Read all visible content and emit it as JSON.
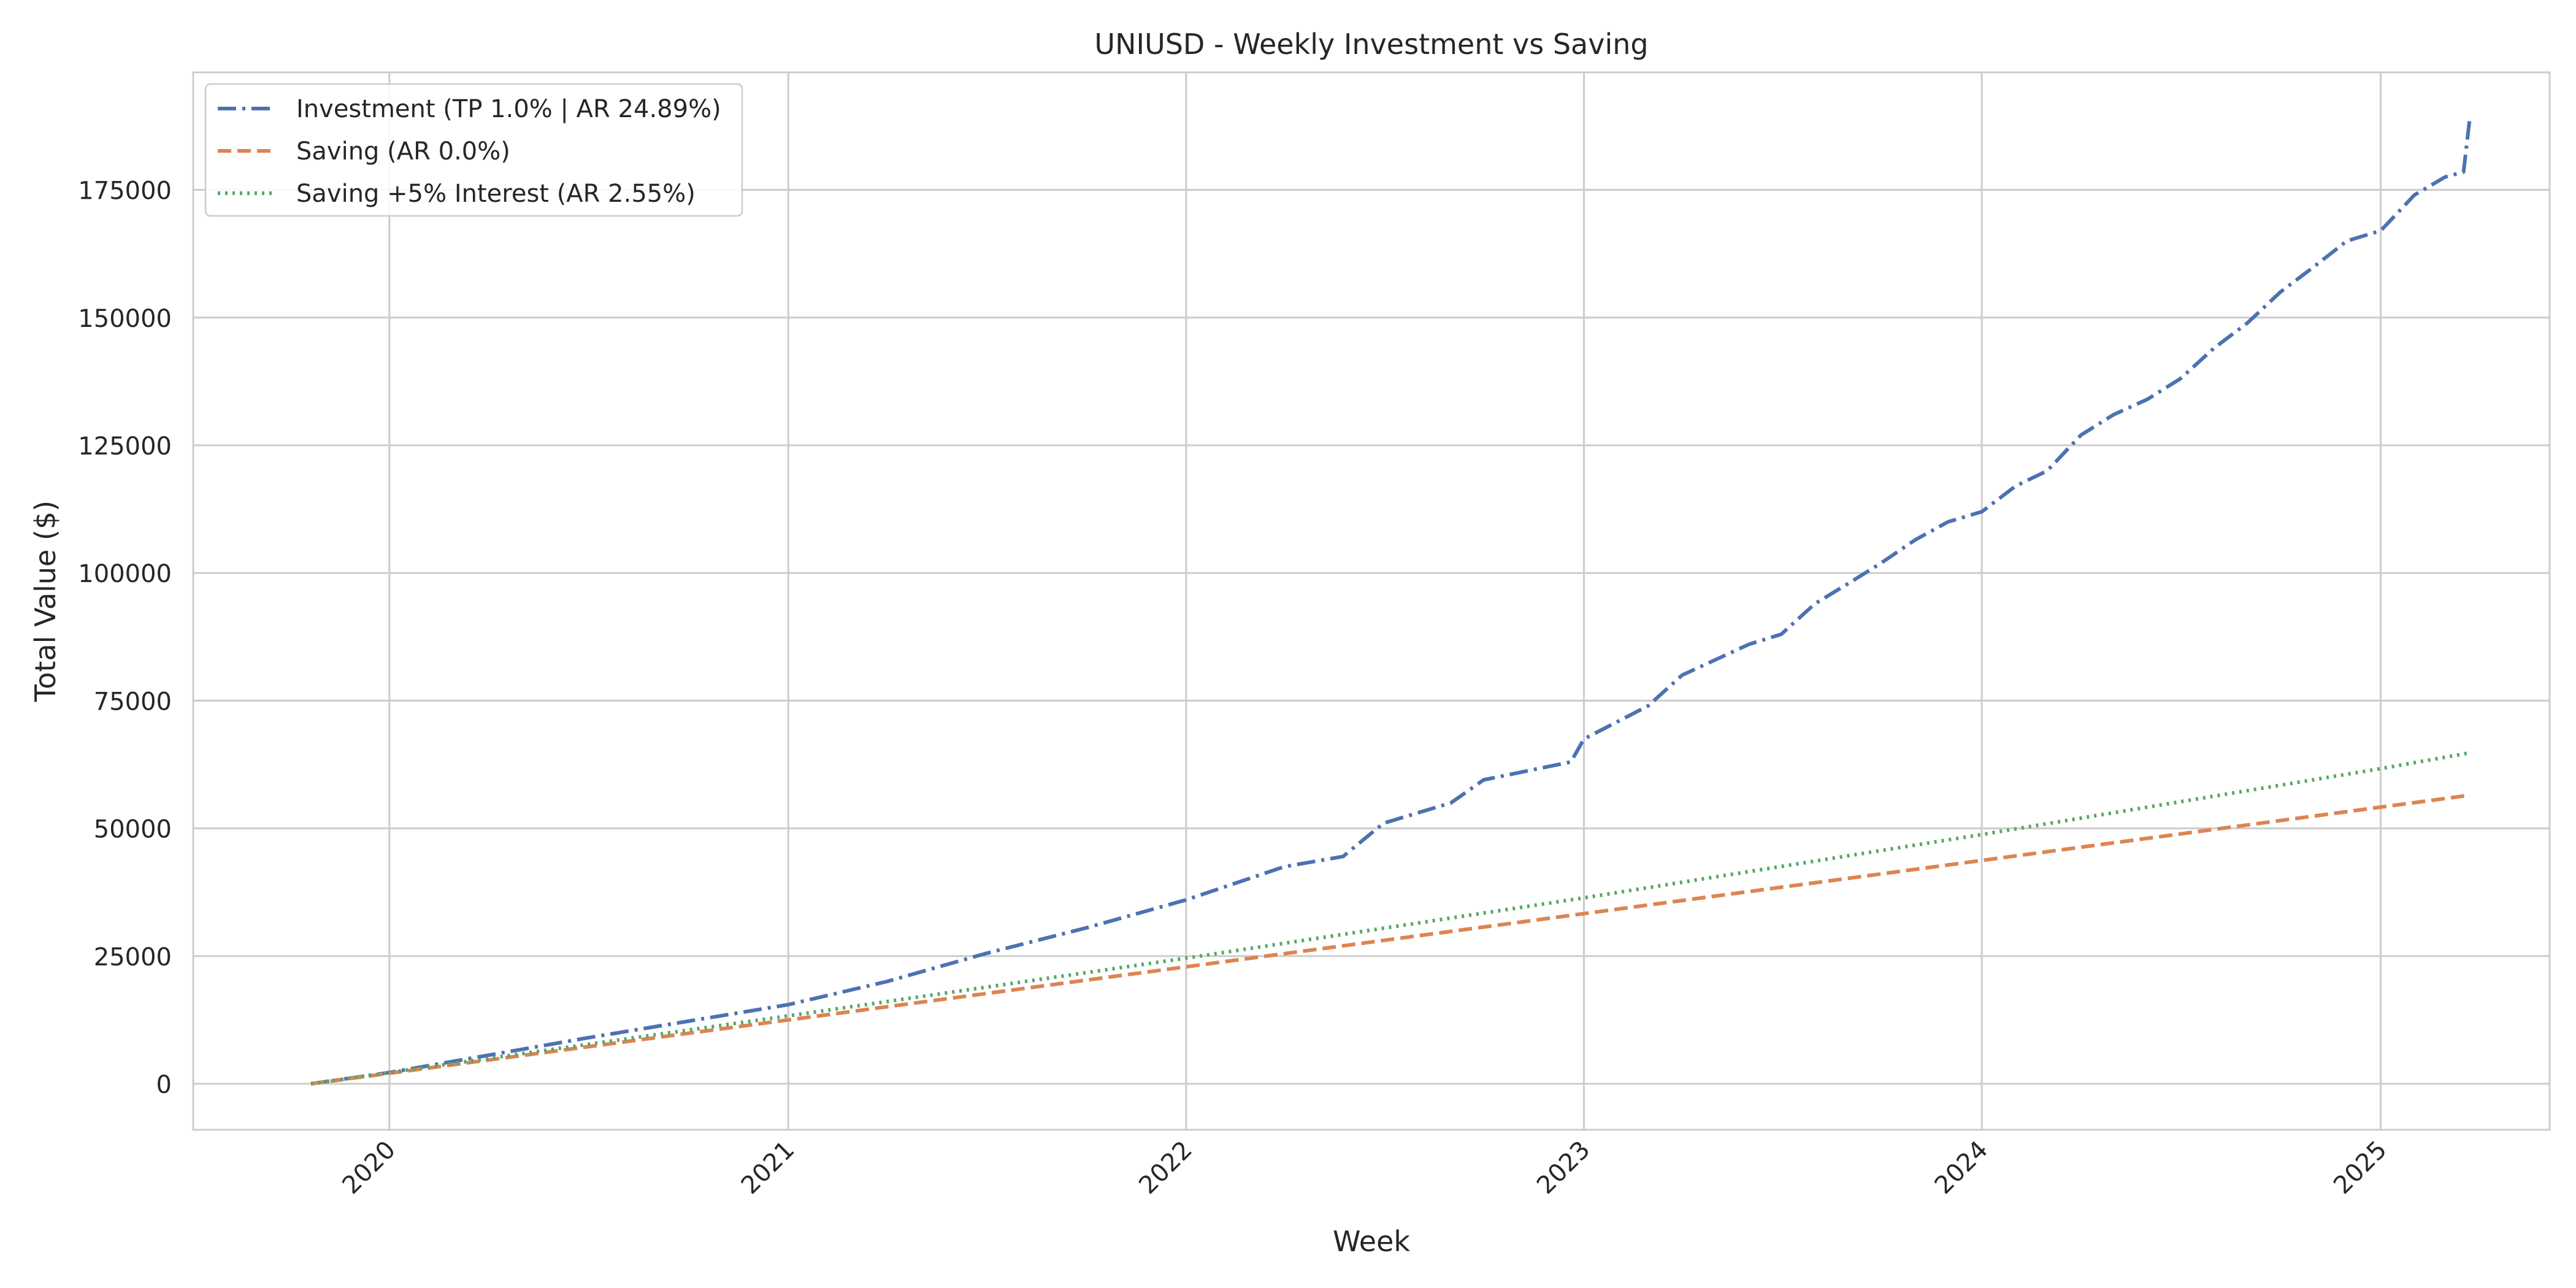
{
  "chart_data": {
    "type": "line",
    "title": "UNIUSD - Weekly Investment vs Saving",
    "xlabel": "Week",
    "ylabel": "Total Value ($)",
    "x_ticks": [
      "2020",
      "2021",
      "2022",
      "2023",
      "2024",
      "2025"
    ],
    "y_ticks": [
      0,
      25000,
      50000,
      75000,
      100000,
      125000,
      150000,
      175000
    ],
    "xlim": [
      "2019-07-05",
      "2025-06-05"
    ],
    "ylim": [
      -9000,
      198000
    ],
    "grid": true,
    "legend_position": "top-left",
    "series": [
      {
        "name": "Investment (TP 1.0% | AR 24.89%)",
        "color": "#4c72b0",
        "style": "dashdot",
        "x": [
          "2019-10-21",
          "2020-01-01",
          "2020-07-01",
          "2021-01-01",
          "2021-04-01",
          "2021-07-01",
          "2021-10-01",
          "2022-01-01",
          "2022-04-01",
          "2022-05-25",
          "2022-07-01",
          "2022-09-01",
          "2022-10-01",
          "2022-12-20",
          "2023-01-01",
          "2023-03-01",
          "2023-04-01",
          "2023-06-01",
          "2023-07-01",
          "2023-08-01",
          "2023-09-01",
          "2023-10-01",
          "2023-11-01",
          "2023-12-01",
          "2024-01-01",
          "2024-02-01",
          "2024-03-01",
          "2024-04-01",
          "2024-05-01",
          "2024-06-01",
          "2024-07-01",
          "2024-08-01",
          "2024-09-01",
          "2024-10-01",
          "2024-11-01",
          "2024-12-01",
          "2025-01-01",
          "2025-02-01",
          "2025-03-01",
          "2025-03-18",
          "2025-03-24"
        ],
        "y": [
          0,
          2200,
          9000,
          15500,
          20000,
          25500,
          30500,
          36000,
          42500,
          44500,
          51000,
          55000,
          59500,
          63000,
          67500,
          74000,
          80000,
          86000,
          88000,
          94000,
          98000,
          102000,
          106500,
          110000,
          112000,
          117000,
          120000,
          127000,
          131000,
          134000,
          138000,
          144000,
          149000,
          155000,
          160000,
          165000,
          167000,
          174000,
          177500,
          178500,
          189500
        ]
      },
      {
        "name": "Saving (AR 0.0%)",
        "color": "#dd8452",
        "style": "dashed",
        "x": [
          "2019-10-21",
          "2025-03-24"
        ],
        "y": [
          0,
          56500
        ]
      },
      {
        "name": "Saving +5% Interest (AR 2.55%)",
        "color": "#55a868",
        "style": "dotted",
        "x": [
          "2019-10-21",
          "2020-01-01",
          "2021-01-01",
          "2022-01-01",
          "2023-01-01",
          "2024-01-01",
          "2025-01-01",
          "2025-03-24"
        ],
        "y": [
          0,
          2200,
          13300,
          24600,
          36400,
          48800,
          61700,
          64800
        ]
      }
    ]
  }
}
